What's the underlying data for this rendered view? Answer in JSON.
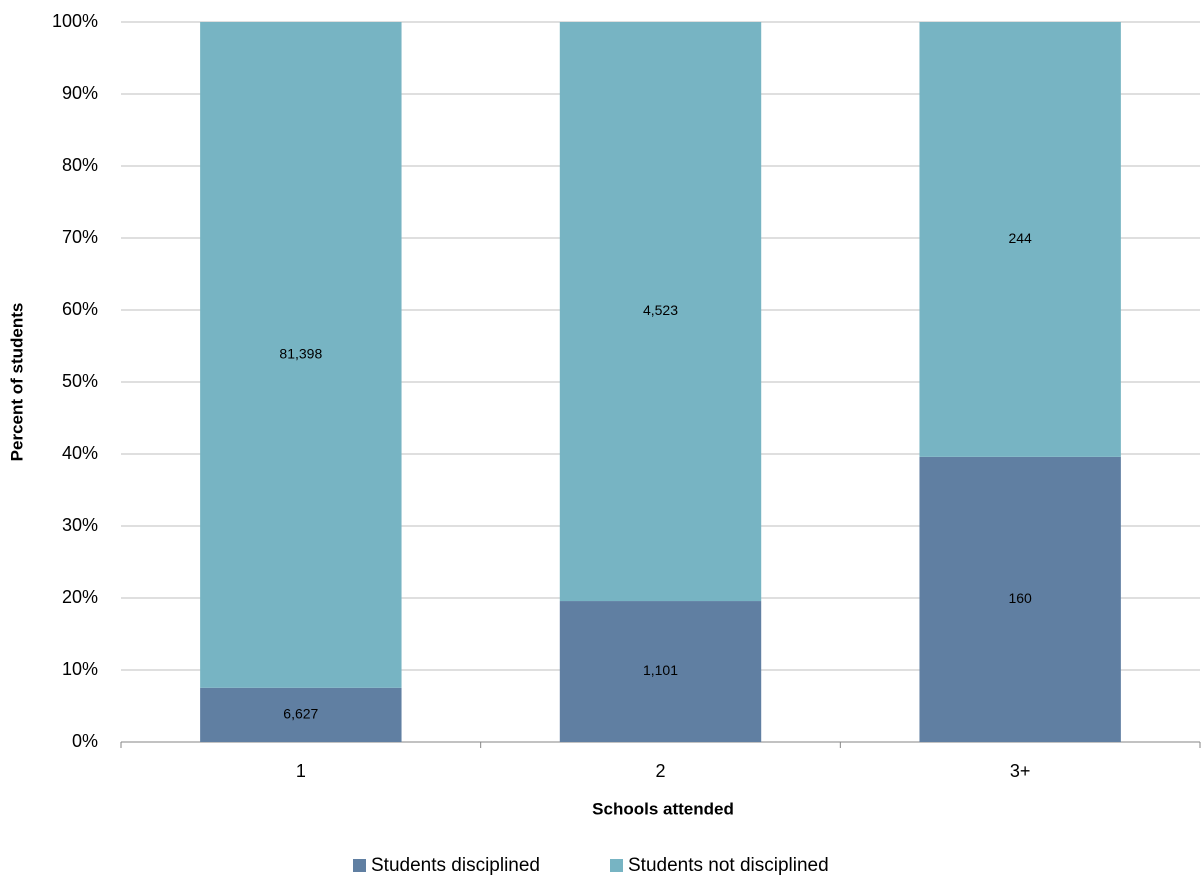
{
  "chart_data": {
    "type": "bar",
    "stack": "percent",
    "x_label": "Schools attended",
    "y_label": "Percent of students",
    "categories": [
      "1",
      "2",
      "3+"
    ],
    "series": [
      {
        "name": "Students disciplined",
        "color": "#607fa2",
        "values": [
          6627,
          1101,
          160
        ],
        "value_labels": [
          "6,627",
          "1,101",
          "160"
        ]
      },
      {
        "name": "Students not disciplined",
        "color": "#77b4c3",
        "values": [
          81398,
          4523,
          244
        ],
        "value_labels": [
          "81,398",
          "4,523",
          "244"
        ]
      }
    ],
    "ylim": [
      0,
      100
    ],
    "yticks": [
      {
        "value": 0,
        "label": "0%"
      },
      {
        "value": 10,
        "label": "10%"
      },
      {
        "value": 20,
        "label": "20%"
      },
      {
        "value": 30,
        "label": "30%"
      },
      {
        "value": 40,
        "label": "40%"
      },
      {
        "value": 50,
        "label": "50%"
      },
      {
        "value": 60,
        "label": "60%"
      },
      {
        "value": 70,
        "label": "70%"
      },
      {
        "value": 80,
        "label": "80%"
      },
      {
        "value": 90,
        "label": "90%"
      },
      {
        "value": 100,
        "label": "100%"
      }
    ],
    "grid": true,
    "legend": "bottom"
  }
}
